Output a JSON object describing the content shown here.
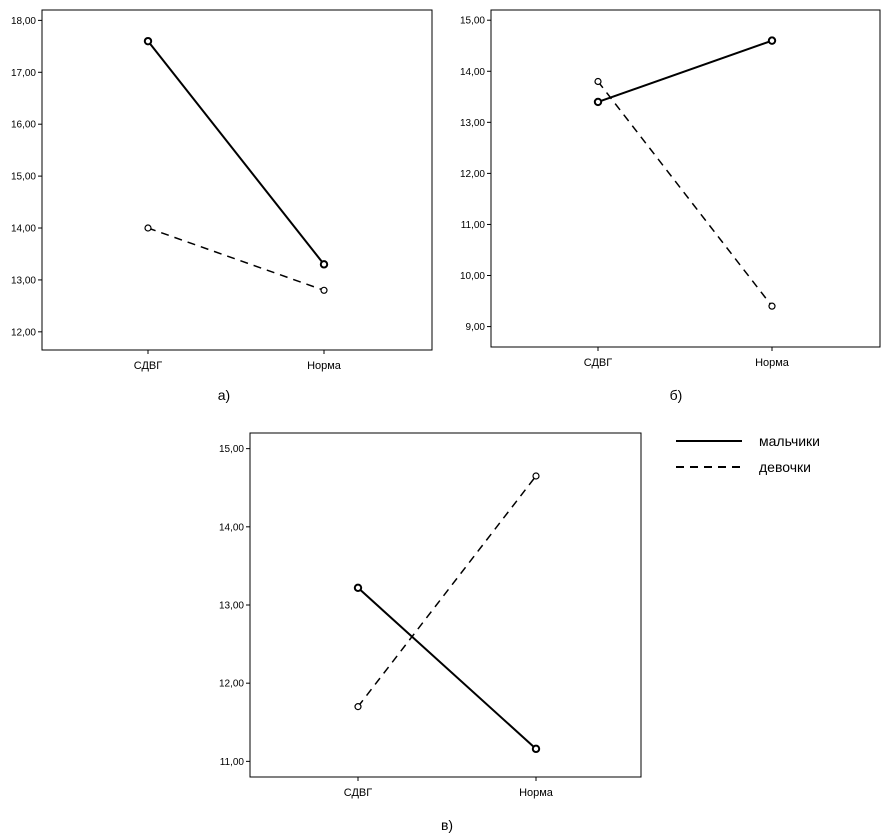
{
  "legend": [
    {
      "name": "мальчики",
      "style": "solid"
    },
    {
      "name": "девочки",
      "style": "dashed"
    }
  ],
  "chart_data": [
    {
      "type": "line",
      "panel_label": "а)",
      "categories": [
        "СДВГ",
        "Норма"
      ],
      "y_ticks": [
        "12,00",
        "13,00",
        "14,00",
        "15,00",
        "16,00",
        "17,00",
        "18,00"
      ],
      "ylim": [
        11.65,
        18.2
      ],
      "series": [
        {
          "name": "мальчики",
          "values": [
            17.6,
            13.3
          ]
        },
        {
          "name": "девочки",
          "values": [
            14.0,
            12.8
          ]
        }
      ]
    },
    {
      "type": "line",
      "panel_label": "б)",
      "categories": [
        "СДВГ",
        "Норма"
      ],
      "y_ticks": [
        "9,00",
        "10,00",
        "11,00",
        "12,00",
        "13,00",
        "14,00",
        "15,00"
      ],
      "ylim": [
        8.6,
        15.2
      ],
      "series": [
        {
          "name": "мальчики",
          "values": [
            13.4,
            14.6
          ]
        },
        {
          "name": "девочки",
          "values": [
            13.8,
            9.4
          ]
        }
      ]
    },
    {
      "type": "line",
      "panel_label": "в)",
      "categories": [
        "СДВГ",
        "Норма"
      ],
      "y_ticks": [
        "11,00",
        "12,00",
        "13,00",
        "14,00",
        "15,00"
      ],
      "ylim": [
        10.8,
        15.2
      ],
      "series": [
        {
          "name": "мальчики",
          "values": [
            13.22,
            11.16
          ]
        },
        {
          "name": "девочки",
          "values": [
            11.7,
            14.65
          ]
        }
      ]
    }
  ]
}
